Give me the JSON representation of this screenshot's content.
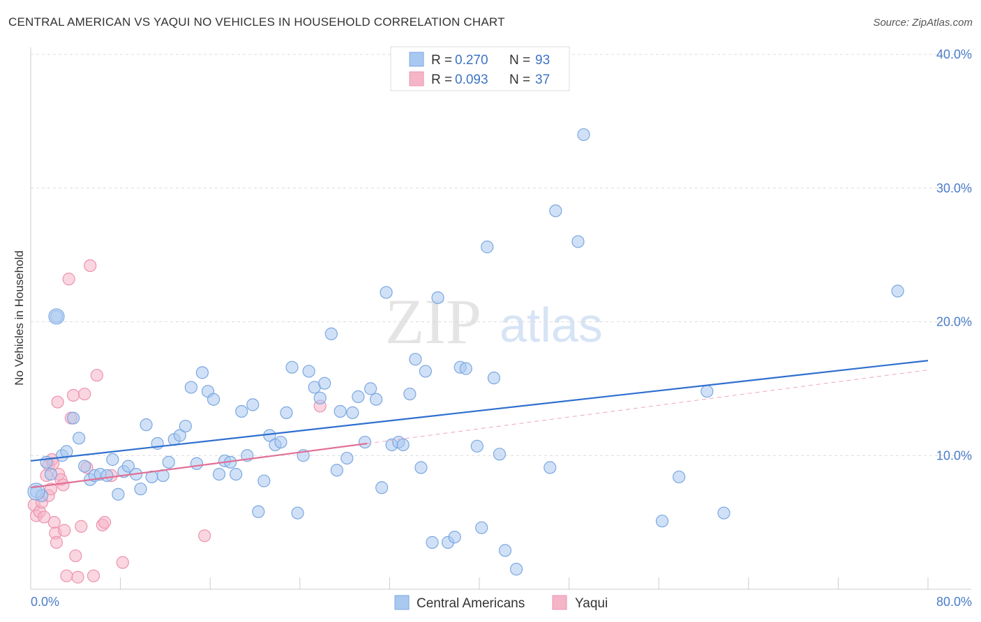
{
  "header": {
    "title": "CENTRAL AMERICAN VS YAQUI NO VEHICLES IN HOUSEHOLD CORRELATION CHART",
    "source": "Source: ZipAtlas.com"
  },
  "watermark": {
    "zip": "ZIP",
    "atlas": "atlas"
  },
  "legend_top": {
    "rows": [
      {
        "r_label": "R = ",
        "r_value": "0.270",
        "n_label": "N = ",
        "n_value": "93",
        "color": "#a9c8f0"
      },
      {
        "r_label": "R = ",
        "r_value": "0.093",
        "n_label": "N = ",
        "n_value": "37",
        "color": "#f5b5c8"
      }
    ]
  },
  "legend_bottom": {
    "items": [
      {
        "label": "Central Americans",
        "color": "#a9c8f0"
      },
      {
        "label": "Yaqui",
        "color": "#f5b5c8"
      }
    ]
  },
  "chart_data": {
    "type": "scatter",
    "ylabel": "No Vehicles in Household",
    "xlim": [
      0,
      80
    ],
    "ylim": [
      0,
      40
    ],
    "x_tick_labels": [
      "0.0%",
      "80.0%"
    ],
    "y_ticks": [
      10,
      20,
      30,
      40
    ],
    "y_tick_labels": [
      "10.0%",
      "20.0%",
      "30.0%",
      "40.0%"
    ],
    "grid": true,
    "series": [
      {
        "name": "Central Americans",
        "color": "#7ba7e0",
        "fill": "#a9c8f0",
        "trend": {
          "x": [
            0,
            80
          ],
          "y": [
            9.6,
            17.1
          ],
          "style": "solid",
          "color": "#2f6fcf"
        },
        "points": [
          [
            0.5,
            7.3
          ],
          [
            1.0,
            7.0
          ],
          [
            1.4,
            9.5
          ],
          [
            1.8,
            8.6
          ],
          [
            2.3,
            20.4
          ],
          [
            2.8,
            10.0
          ],
          [
            3.2,
            10.3
          ],
          [
            3.8,
            12.8
          ],
          [
            4.3,
            11.3
          ],
          [
            4.8,
            9.2
          ],
          [
            5.3,
            8.2
          ],
          [
            5.7,
            8.5
          ],
          [
            6.2,
            8.6
          ],
          [
            6.8,
            8.5
          ],
          [
            7.3,
            9.7
          ],
          [
            7.8,
            7.1
          ],
          [
            8.3,
            8.8
          ],
          [
            8.7,
            9.2
          ],
          [
            9.4,
            8.6
          ],
          [
            9.8,
            7.5
          ],
          [
            10.3,
            12.3
          ],
          [
            10.8,
            8.4
          ],
          [
            11.3,
            10.9
          ],
          [
            11.8,
            8.5
          ],
          [
            12.3,
            9.5
          ],
          [
            12.8,
            11.2
          ],
          [
            13.3,
            11.5
          ],
          [
            13.8,
            12.2
          ],
          [
            14.3,
            15.1
          ],
          [
            14.8,
            9.4
          ],
          [
            15.3,
            16.2
          ],
          [
            15.8,
            14.8
          ],
          [
            16.3,
            14.2
          ],
          [
            16.8,
            8.6
          ],
          [
            17.3,
            9.6
          ],
          [
            17.8,
            9.5
          ],
          [
            18.3,
            8.6
          ],
          [
            18.8,
            13.3
          ],
          [
            19.3,
            10.0
          ],
          [
            19.8,
            13.8
          ],
          [
            20.3,
            5.8
          ],
          [
            20.8,
            8.1
          ],
          [
            21.3,
            11.5
          ],
          [
            21.8,
            10.8
          ],
          [
            22.3,
            11.0
          ],
          [
            22.8,
            13.2
          ],
          [
            23.3,
            16.6
          ],
          [
            23.8,
            5.7
          ],
          [
            24.3,
            10.0
          ],
          [
            24.8,
            16.3
          ],
          [
            25.3,
            15.1
          ],
          [
            25.8,
            14.3
          ],
          [
            26.2,
            15.4
          ],
          [
            26.8,
            19.1
          ],
          [
            27.3,
            8.9
          ],
          [
            27.6,
            13.3
          ],
          [
            28.2,
            9.8
          ],
          [
            28.7,
            13.2
          ],
          [
            29.2,
            14.4
          ],
          [
            29.8,
            11.0
          ],
          [
            30.3,
            15.0
          ],
          [
            30.8,
            14.2
          ],
          [
            31.3,
            7.6
          ],
          [
            31.7,
            22.2
          ],
          [
            32.2,
            10.8
          ],
          [
            32.8,
            11.0
          ],
          [
            33.2,
            10.8
          ],
          [
            33.8,
            14.6
          ],
          [
            34.3,
            17.2
          ],
          [
            34.8,
            9.1
          ],
          [
            35.2,
            16.3
          ],
          [
            35.8,
            3.5
          ],
          [
            36.3,
            21.8
          ],
          [
            37.2,
            3.5
          ],
          [
            37.8,
            3.9
          ],
          [
            38.3,
            16.6
          ],
          [
            38.8,
            16.5
          ],
          [
            39.8,
            10.7
          ],
          [
            40.2,
            4.6
          ],
          [
            40.7,
            25.6
          ],
          [
            41.3,
            15.8
          ],
          [
            41.8,
            10.1
          ],
          [
            42.3,
            2.9
          ],
          [
            43.3,
            1.5
          ],
          [
            46.3,
            9.1
          ],
          [
            46.8,
            28.3
          ],
          [
            48.8,
            26.0
          ],
          [
            49.3,
            34.0
          ],
          [
            56.3,
            5.1
          ],
          [
            57.8,
            8.4
          ],
          [
            60.3,
            14.8
          ],
          [
            61.8,
            5.7
          ],
          [
            77.3,
            22.3
          ]
        ]
      },
      {
        "name": "Yaqui",
        "color": "#ec93ad",
        "fill": "#f5b5c8",
        "trend": {
          "x": [
            0,
            30
          ],
          "y": [
            7.6,
            10.9
          ],
          "style": "solid",
          "color": "#e07096"
        },
        "trend_extension": {
          "x": [
            30,
            80
          ],
          "y": [
            10.9,
            16.4
          ],
          "style": "dashed",
          "color": "#f0a4bd"
        },
        "points": [
          [
            0.3,
            6.3
          ],
          [
            0.5,
            5.5
          ],
          [
            0.8,
            5.8
          ],
          [
            1.0,
            6.5
          ],
          [
            1.2,
            5.4
          ],
          [
            1.4,
            8.5
          ],
          [
            1.6,
            7.0
          ],
          [
            1.6,
            9.3
          ],
          [
            1.8,
            7.5
          ],
          [
            1.9,
            9.7
          ],
          [
            2.0,
            9.4
          ],
          [
            2.1,
            5.0
          ],
          [
            2.2,
            4.2
          ],
          [
            2.3,
            3.5
          ],
          [
            2.4,
            14.0
          ],
          [
            2.5,
            8.6
          ],
          [
            2.7,
            8.2
          ],
          [
            2.9,
            7.8
          ],
          [
            3.0,
            4.4
          ],
          [
            3.2,
            1.0
          ],
          [
            3.4,
            23.2
          ],
          [
            3.6,
            12.8
          ],
          [
            3.8,
            14.5
          ],
          [
            4.0,
            2.5
          ],
          [
            4.2,
            0.9
          ],
          [
            4.5,
            4.7
          ],
          [
            4.8,
            14.6
          ],
          [
            5.0,
            9.1
          ],
          [
            5.3,
            24.2
          ],
          [
            5.6,
            1.0
          ],
          [
            5.9,
            16.0
          ],
          [
            6.4,
            4.8
          ],
          [
            6.6,
            5.0
          ],
          [
            7.2,
            8.5
          ],
          [
            8.2,
            2.0
          ],
          [
            15.5,
            4.0
          ],
          [
            25.8,
            13.7
          ]
        ]
      }
    ]
  }
}
